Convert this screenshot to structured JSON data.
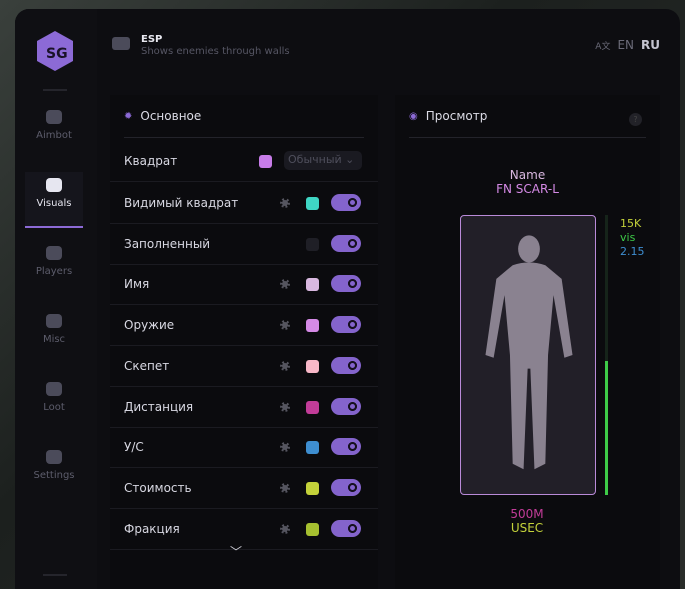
{
  "header": {
    "title": "ESP",
    "subtitle": "Shows enemies through walls",
    "languages": [
      "EN",
      "RU"
    ],
    "active_language": "RU"
  },
  "logo": "SG",
  "sidebar": {
    "items": [
      {
        "label": "Aimbot",
        "icon": "alien-icon"
      },
      {
        "label": "Visuals",
        "icon": "vr-headset-icon",
        "active": true
      },
      {
        "label": "Players",
        "icon": "users-icon"
      },
      {
        "label": "Misc",
        "icon": "dots-icon"
      },
      {
        "label": "Loot",
        "icon": "briefcase-icon"
      },
      {
        "label": "Settings",
        "icon": "list-icon"
      }
    ]
  },
  "main": {
    "title": "Основное",
    "box_row": {
      "label": "Квадрат",
      "color": "#c77ce8",
      "mode": "Обычный"
    },
    "rows": [
      {
        "label": "Видимый квадрат",
        "color": "#3fd6c4",
        "enabled": true,
        "gear": true
      },
      {
        "label": "Заполненный",
        "color": "#1f1f26",
        "enabled": true,
        "gear": false
      },
      {
        "label": "Имя",
        "color": "#d9b8e0",
        "enabled": true,
        "gear": true
      },
      {
        "label": "Оружие",
        "color": "#d58ae6",
        "enabled": true,
        "gear": true
      },
      {
        "label": "Скепет",
        "color": "#f8b8c8",
        "enabled": true,
        "gear": true
      },
      {
        "label": "Дистанция",
        "color": "#c23c98",
        "enabled": true,
        "gear": true
      },
      {
        "label": "У/С",
        "color": "#3e8ed0",
        "enabled": true,
        "gear": true
      },
      {
        "label": "Стоимость",
        "color": "#c4d23a",
        "enabled": true,
        "gear": true
      },
      {
        "label": "Фракция",
        "color": "#a6c030",
        "enabled": true,
        "gear": true
      }
    ]
  },
  "preview": {
    "title": "Просмотр",
    "help": "?",
    "name": "Name",
    "weapon": "FN SCAR-L",
    "value": "15K",
    "visible": "vis",
    "kd": "2.15",
    "distance": "500M",
    "faction": "USEC",
    "health_fraction": 0.48,
    "colors": {
      "name": "#d9b8e0",
      "weapon": "#d58ae6",
      "value": "#c4d23a",
      "visible": "#3ecb48",
      "kd": "#3e8ed0",
      "distance": "#c23c98",
      "faction": "#c4d23a"
    }
  }
}
